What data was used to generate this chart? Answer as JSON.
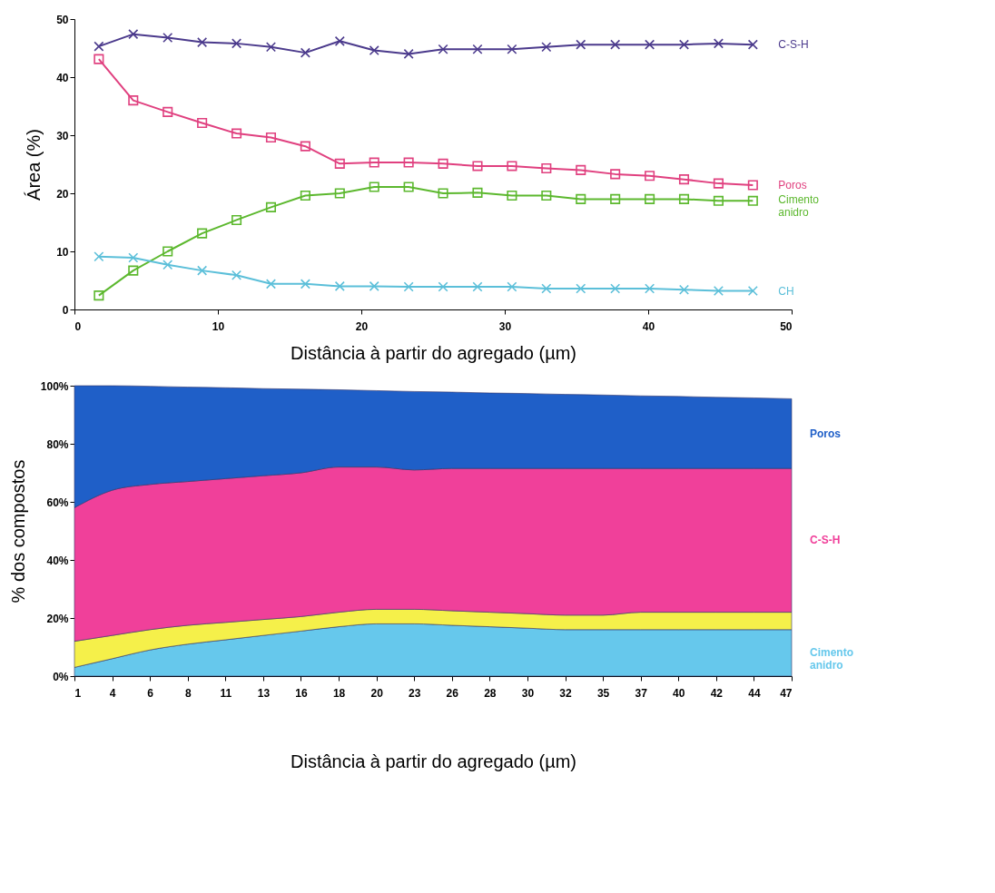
{
  "chart_data": [
    {
      "type": "line",
      "xlabel": "Distância à partir do agregado (µm)",
      "ylabel": "Área  (%)",
      "x": [
        1.7,
        4.1,
        6.5,
        8.9,
        11.3,
        13.7,
        16.1,
        18.5,
        20.9,
        23.3,
        25.7,
        28.1,
        30.5,
        32.9,
        35.3,
        37.7,
        40.1,
        42.5,
        44.9,
        47.3
      ],
      "series": [
        {
          "name": "C-S-H",
          "color": "#4b3a8c",
          "marker": "cross",
          "values": [
            45.3,
            47.4,
            46.8,
            46,
            45.8,
            45.2,
            44.2,
            46.2,
            44.6,
            44,
            44.8,
            44.8,
            44.8,
            45.2,
            45.6,
            45.6,
            45.6,
            45.6,
            45.8,
            45.6
          ]
        },
        {
          "name": "Poros",
          "color": "#e0407f",
          "marker": "square",
          "values": [
            43.1,
            36,
            34,
            32.1,
            30.3,
            29.6,
            28.1,
            25.1,
            25.3,
            25.3,
            25.1,
            24.7,
            24.7,
            24.3,
            24,
            23.3,
            23,
            22.4,
            21.7,
            21.4
          ]
        },
        {
          "name": "Cimento anidro",
          "color": "#5cb82e",
          "marker": "square",
          "values": [
            2.4,
            6.7,
            10,
            13.1,
            15.4,
            17.6,
            19.6,
            20,
            21.1,
            21.1,
            20,
            20.1,
            19.6,
            19.6,
            19,
            19,
            19,
            19,
            18.7,
            18.7
          ]
        },
        {
          "name": "CH",
          "color": "#5bbfd9",
          "marker": "cross",
          "values": [
            9.1,
            8.9,
            7.7,
            6.7,
            5.9,
            4.4,
            4.4,
            4,
            4,
            3.9,
            3.9,
            3.9,
            3.9,
            3.6,
            3.6,
            3.6,
            3.6,
            3.4,
            3.2,
            3.2
          ]
        }
      ],
      "xlim": [
        0,
        50
      ],
      "xticks": [
        0,
        10,
        20,
        30,
        40,
        50
      ],
      "ylim": [
        0,
        50
      ],
      "yticks": [
        0,
        10,
        20,
        30,
        40,
        50
      ]
    },
    {
      "type": "area",
      "stacked": true,
      "xlabel": "Distância à partir do agregado (µm)",
      "ylabel": "% dos compostos",
      "categories": [
        "1",
        "4",
        "6",
        "8",
        "11",
        "13",
        "16",
        "18",
        "20",
        "23",
        "26",
        "28",
        "30",
        "32",
        "35",
        "37",
        "40",
        "42",
        "44",
        "47"
      ],
      "series": [
        {
          "name": "Cimento anidro",
          "color": "#66c8ec",
          "values": [
            3,
            6,
            9,
            11,
            12.5,
            14,
            15.5,
            17,
            18,
            18,
            17.5,
            17,
            16.5,
            16,
            16,
            16,
            16,
            16,
            16,
            16
          ]
        },
        {
          "color": "#f5f04a",
          "values": [
            9,
            8,
            7,
            6.5,
            6,
            5.5,
            5,
            5,
            5,
            5,
            5,
            5,
            5,
            5,
            5,
            6,
            6,
            6,
            6,
            6
          ]
        },
        {
          "name": "C-S-H",
          "color": "#f0409a",
          "values": [
            46,
            50,
            50,
            49.5,
            49.5,
            49.5,
            49.5,
            50,
            49,
            48,
            49,
            49.5,
            50,
            50.5,
            50.5,
            49.5,
            49.5,
            49.5,
            49.5,
            49.5
          ]
        },
        {
          "name": "Poros",
          "color": "#1f5fc8",
          "values": [
            42,
            36,
            33.8,
            32.5,
            31.3,
            30,
            28.8,
            26.6,
            26.3,
            27,
            26.3,
            26,
            25.8,
            25.5,
            25.3,
            25,
            24.8,
            24.5,
            24.3,
            24
          ]
        }
      ],
      "ylim": [
        0,
        100
      ],
      "yticks": [
        {
          "value": 0,
          "label": "0%"
        },
        {
          "value": 20,
          "label": "20%"
        },
        {
          "value": 40,
          "label": "40%"
        },
        {
          "value": 60,
          "label": "60%"
        },
        {
          "value": 80,
          "label": "80%"
        },
        {
          "value": 100,
          "label": "100%"
        }
      ]
    }
  ]
}
